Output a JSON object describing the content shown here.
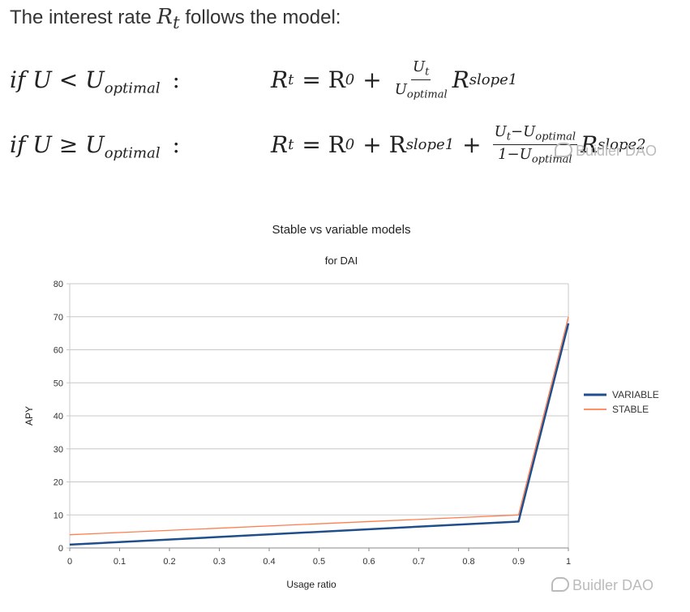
{
  "intro": {
    "prefix": "The interest rate",
    "variable": "R",
    "variable_sub": "t",
    "suffix": "follows the model:"
  },
  "formula1": {
    "condition": "if U < U",
    "condition_sub": "optimal",
    "condition_colon": ":",
    "lhs": "R",
    "lhs_sub": "t",
    "eq": "= R",
    "r0_sub": "0",
    "plus": "+",
    "frac_num": "U",
    "frac_num_sub": "t",
    "frac_den": "U",
    "frac_den_sub": "optimal",
    "tail": "R",
    "tail_sub": "slope1"
  },
  "formula2": {
    "condition": "if U ≥ U",
    "condition_sub": "optimal",
    "condition_colon": ":",
    "lhs": "R",
    "lhs_sub": "t",
    "eq": "= R",
    "r0_sub": "0",
    "plus": "+ R",
    "slope1_sub": "slope1",
    "plus2": "+",
    "frac_num": "U",
    "frac_num_sub": "t",
    "frac_num_mid": "−U",
    "frac_num_mid_sub": "optimal",
    "frac_den": "1−U",
    "frac_den_sub": "optimal",
    "tail": "R",
    "tail_sub": "slope2"
  },
  "watermark": "Buidler DAO",
  "colors": {
    "variable": "#1f4e8c",
    "stable": "#ff7f50",
    "grid": "#c8c8c8",
    "axis": "#888888"
  },
  "chart_data": {
    "type": "line",
    "title": "Stable vs variable models",
    "subtitle": "for DAI",
    "xlabel": "Usage ratio",
    "ylabel": "APY",
    "xlim": [
      0,
      1
    ],
    "ylim": [
      0,
      80
    ],
    "x_ticks": [
      "0",
      "0.1",
      "0.2",
      "0.3",
      "0.4",
      "0.5",
      "0.6",
      "0.7",
      "0.8",
      "0.9",
      "1"
    ],
    "y_ticks": [
      "0",
      "10",
      "20",
      "30",
      "40",
      "50",
      "60",
      "70",
      "80"
    ],
    "grid": true,
    "legend_position": "right",
    "series": [
      {
        "name": "VARIABLE",
        "x": [
          0,
          0.9,
          1
        ],
        "y": [
          1,
          8,
          68
        ]
      },
      {
        "name": "STABLE",
        "x": [
          0,
          0.9,
          1
        ],
        "y": [
          4,
          10,
          70
        ]
      }
    ]
  }
}
